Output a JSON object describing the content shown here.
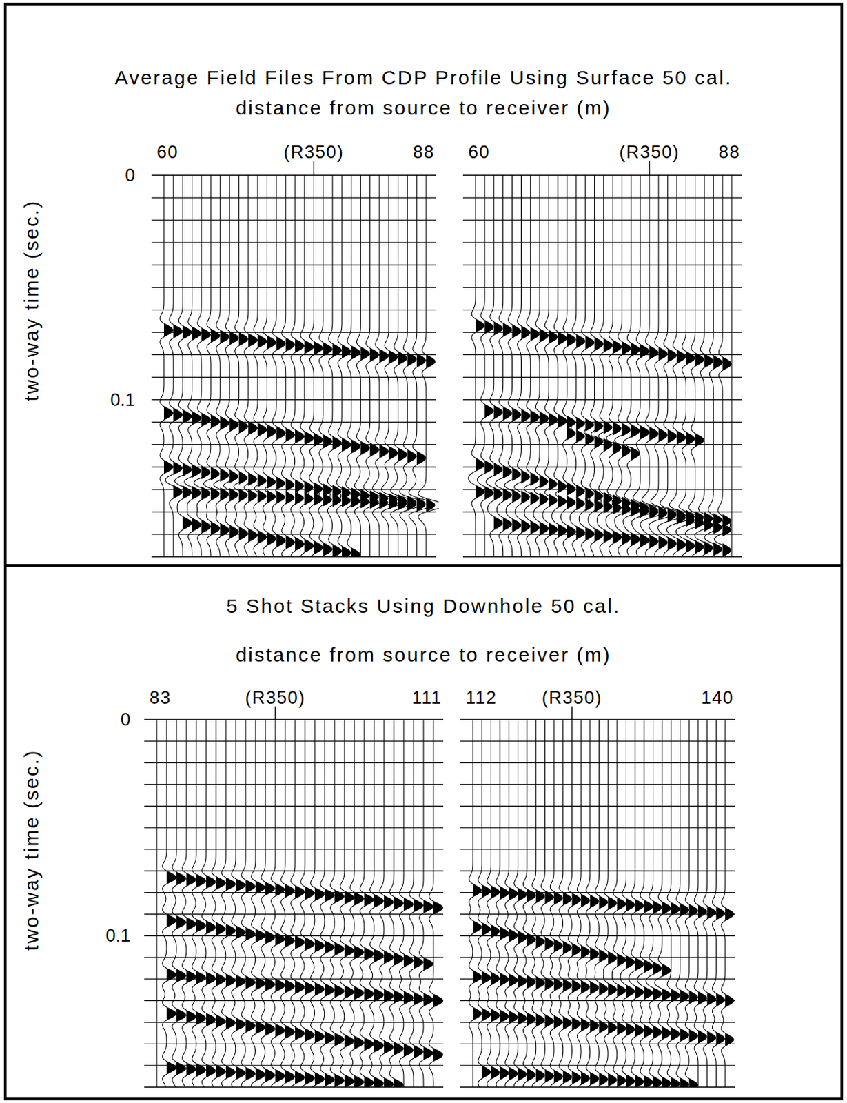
{
  "chart_data": [
    {
      "type": "seismic_wiggle",
      "title": "Average Field Files From CDP Profile Using Surface 50 cal.",
      "xlabel": "distance from source to receiver (m)",
      "ylabel": "two-way time (sec.)",
      "ylim": [
        0,
        0.17
      ],
      "yticks": [
        0,
        0.1
      ],
      "grid": true,
      "timing_lines": [
        0,
        0.01,
        0.02,
        0.03,
        0.04,
        0.05,
        0.06,
        0.07,
        0.08,
        0.09,
        0.1,
        0.11,
        0.12,
        0.13,
        0.14,
        0.15,
        0.16,
        0.17
      ],
      "panels": [
        {
          "xlim": [
            60,
            88
          ],
          "xticks": [
            60,
            {
              "value": 76,
              "label": "(R350)"
            },
            88
          ],
          "events": [
            {
              "x": [
                60,
                88
              ],
              "t": [
                0.069,
                0.083
              ]
            },
            {
              "x": [
                60,
                87
              ],
              "t": [
                0.106,
                0.126
              ]
            },
            {
              "x": [
                60,
                88
              ],
              "t": [
                0.13,
                0.147
              ]
            },
            {
              "x": [
                61,
                88
              ],
              "t": [
                0.141,
                0.147
              ]
            },
            {
              "x": [
                62,
                80
              ],
              "t": [
                0.155,
                0.169
              ]
            }
          ]
        },
        {
          "xlim": [
            60,
            88
          ],
          "xticks": [
            60,
            {
              "value": 79,
              "label": "(R350)"
            },
            88
          ],
          "events": [
            {
              "x": [
                60,
                87
              ],
              "t": [
                0.067,
                0.084
              ]
            },
            {
              "x": [
                61,
                84
              ],
              "t": [
                0.105,
                0.118
              ]
            },
            {
              "x": [
                70,
                77
              ],
              "t": [
                0.115,
                0.124
              ]
            },
            {
              "x": [
                60,
                87
              ],
              "t": [
                0.129,
                0.158
              ]
            },
            {
              "x": [
                60,
                87
              ],
              "t": [
                0.141,
                0.154
              ]
            },
            {
              "x": [
                62,
                87
              ],
              "t": [
                0.155,
                0.167
              ]
            }
          ]
        }
      ]
    },
    {
      "type": "seismic_wiggle",
      "title": "5 Shot Stacks Using Downhole 50 cal.",
      "xlabel": "distance from source to receiver (m)",
      "ylabel": "two-way time (sec.)",
      "ylim": [
        0,
        0.17
      ],
      "yticks": [
        0,
        0.1
      ],
      "grid": true,
      "timing_lines": [
        0,
        0.01,
        0.02,
        0.03,
        0.04,
        0.05,
        0.06,
        0.07,
        0.08,
        0.09,
        0.1,
        0.11,
        0.12,
        0.13,
        0.14,
        0.15,
        0.16,
        0.17
      ],
      "panels": [
        {
          "xlim": [
            83,
            111
          ],
          "xticks": [
            83,
            {
              "value": 95,
              "label": "(R350)"
            },
            111
          ],
          "events": [
            {
              "x": [
                84,
                111
              ],
              "t": [
                0.073,
                0.087
              ]
            },
            {
              "x": [
                84,
                110
              ],
              "t": [
                0.093,
                0.113
              ]
            },
            {
              "x": [
                84,
                111
              ],
              "t": [
                0.118,
                0.13
              ]
            },
            {
              "x": [
                84,
                111
              ],
              "t": [
                0.136,
                0.155
              ]
            },
            {
              "x": [
                84,
                107
              ],
              "t": [
                0.161,
                0.169
              ]
            }
          ]
        },
        {
          "xlim": [
            112,
            140
          ],
          "xticks": [
            112,
            {
              "value": 123,
              "label": "(R350)"
            },
            140
          ],
          "events": [
            {
              "x": [
                112,
                140
              ],
              "t": [
                0.079,
                0.09
              ]
            },
            {
              "x": [
                112,
                133
              ],
              "t": [
                0.096,
                0.116
              ]
            },
            {
              "x": [
                112,
                140
              ],
              "t": [
                0.119,
                0.13
              ]
            },
            {
              "x": [
                112,
                140
              ],
              "t": [
                0.136,
                0.148
              ]
            },
            {
              "x": [
                113,
                136
              ],
              "t": [
                0.163,
                0.169
              ]
            }
          ]
        }
      ]
    }
  ]
}
